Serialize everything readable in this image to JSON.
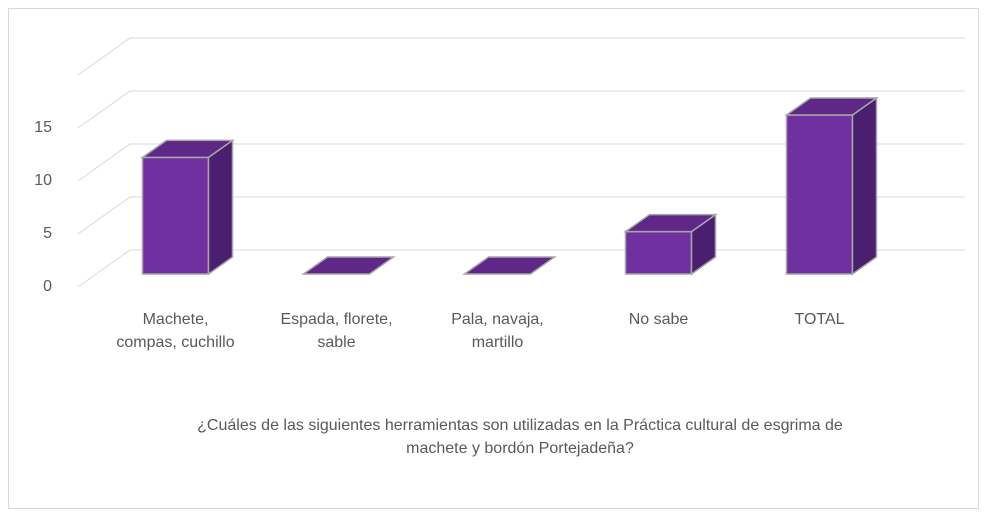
{
  "chart_data": {
    "type": "bar3d",
    "title": "¿Cuáles  de las siguientes herramientas son utilizadas en la Práctica cultural de esgrima de machete y bordón Portejadeña?",
    "categories": [
      "Machete, compas, cuchillo",
      "Espada, florete, sable",
      "Pala, navaja, martillo",
      "No sabe",
      "TOTAL"
    ],
    "values": [
      11,
      0,
      0,
      4,
      15
    ],
    "color": "#7030a0",
    "ylim": [
      0,
      20
    ],
    "yticks": [
      0,
      5,
      10,
      15
    ],
    "grid": true
  }
}
